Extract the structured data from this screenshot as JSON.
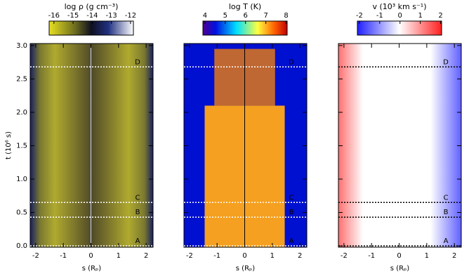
{
  "chart_data": [
    {
      "type": "heatmap",
      "colorbar": {
        "label": "log ρ  (g cm⁻³)",
        "lim": [
          -16.25,
          -11.85
        ],
        "ticks": [
          -16,
          -15,
          -14,
          -13,
          -12
        ]
      },
      "xlabel": "s (Rₚ)",
      "ylabel": "t (10⁶ s)",
      "xlim": [
        -2.2,
        2.25
      ],
      "xticks": [
        -2,
        -1,
        0,
        1,
        2
      ],
      "ylim": [
        -0.02,
        3.03
      ],
      "yticks": [
        {
          "value": 0,
          "label": "0.0"
        },
        {
          "value": 0.5,
          "label": "0.5"
        },
        {
          "value": 1,
          "label": "1.0"
        },
        {
          "value": 1.5,
          "label": "1.5"
        },
        {
          "value": 2,
          "label": "2.0"
        },
        {
          "value": 2.5,
          "label": "2.5"
        },
        {
          "value": 3,
          "label": "3.0"
        }
      ],
      "markers": [
        {
          "label": "A",
          "t": 0.0
        },
        {
          "label": "B",
          "t": 0.43
        },
        {
          "label": "C",
          "t": 0.65
        },
        {
          "label": "D",
          "t": 2.68
        }
      ],
      "marker_color": "#ffffff"
    },
    {
      "type": "heatmap",
      "colorbar": {
        "label": "log T  (K)",
        "lim": [
          3.9,
          8.05
        ],
        "ticks": [
          4,
          5,
          6,
          7,
          8
        ]
      },
      "xlabel": "s (Rₚ)",
      "xlim": [
        -2.2,
        2.25
      ],
      "xticks": [
        -2,
        -1,
        0,
        1,
        2
      ],
      "ylim": [
        -0.02,
        3.03
      ],
      "markers": [
        {
          "label": "A",
          "t": 0.0
        },
        {
          "label": "B",
          "t": 0.43
        },
        {
          "label": "C",
          "t": 0.65
        },
        {
          "label": "D",
          "t": 2.68
        }
      ],
      "marker_color": "#ffffff"
    },
    {
      "type": "heatmap",
      "colorbar": {
        "label": "v  (10³ km s⁻¹)",
        "lim": [
          -2.1,
          2.05
        ],
        "ticks": [
          -2,
          -1,
          0,
          1,
          2
        ]
      },
      "xlabel": "s (Rₚ)",
      "xlim": [
        -2.2,
        2.25
      ],
      "xticks": [
        -2,
        -1,
        0,
        1,
        2
      ],
      "ylim": [
        -0.02,
        3.03
      ],
      "markers": [
        {
          "label": "A",
          "t": 0.0
        },
        {
          "label": "B",
          "t": 0.43
        },
        {
          "label": "C",
          "t": 0.65
        },
        {
          "label": "D",
          "t": 2.68
        }
      ],
      "marker_color": "#000000"
    }
  ]
}
